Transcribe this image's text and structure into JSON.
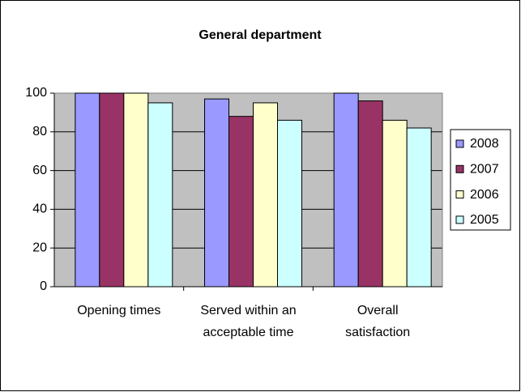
{
  "chart_data": {
    "type": "bar",
    "title": "General department",
    "categories": [
      "Opening times",
      "Served within an acceptable time",
      "Overall satisfaction"
    ],
    "series": [
      {
        "name": "2008",
        "color": "#9999ff",
        "values": [
          100,
          97,
          100
        ]
      },
      {
        "name": "2007",
        "color": "#993366",
        "values": [
          100,
          88,
          96
        ]
      },
      {
        "name": "2006",
        "color": "#ffffcc",
        "values": [
          100,
          95,
          86
        ]
      },
      {
        "name": "2005",
        "color": "#ccffff",
        "values": [
          95,
          86,
          82
        ]
      }
    ],
    "ylim": [
      0,
      100
    ],
    "yticks": [
      0,
      20,
      40,
      60,
      80,
      100
    ],
    "grid": true,
    "legend": "right"
  }
}
